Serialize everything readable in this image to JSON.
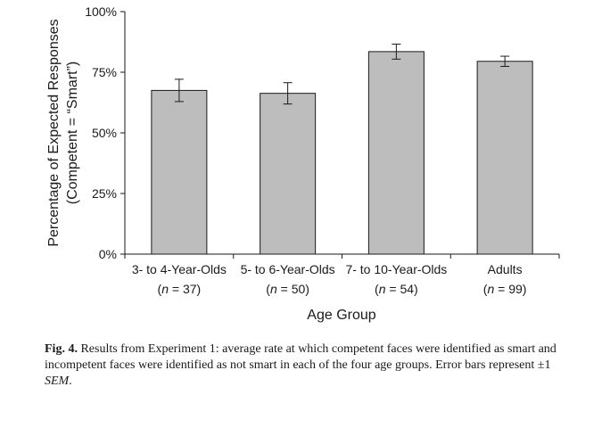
{
  "chart_data": {
    "type": "bar",
    "categories": [
      "3- to 4-Year-Olds",
      "5- to 6-Year-Olds",
      "7- to 10-Year-Olds",
      "Adults"
    ],
    "category_n": [
      "37",
      "50",
      "54",
      "99"
    ],
    "values": [
      67.5,
      66.3,
      83.5,
      79.5
    ],
    "error_sem": [
      4.6,
      4.4,
      3.1,
      2.1
    ],
    "xlabel": "Age Group",
    "ylabel_line1": "Percentage of Expected Responses",
    "ylabel_line2": "(Competent = “Smart”)",
    "yticks": [
      "0%",
      "25%",
      "50%",
      "75%",
      "100%"
    ],
    "ytick_values": [
      0,
      25,
      50,
      75,
      100
    ],
    "ylim": [
      0,
      100
    ],
    "bar_color": "#bdbdbd",
    "grid": false
  },
  "caption": {
    "fig_label": "Fig. 4.",
    "text": "Results from Experiment 1: average rate at which competent faces were identified as smart and incompetent faces were identified as not smart in each of the four age groups. Error bars represent ±1",
    "sem": "SEM",
    "end": "."
  }
}
